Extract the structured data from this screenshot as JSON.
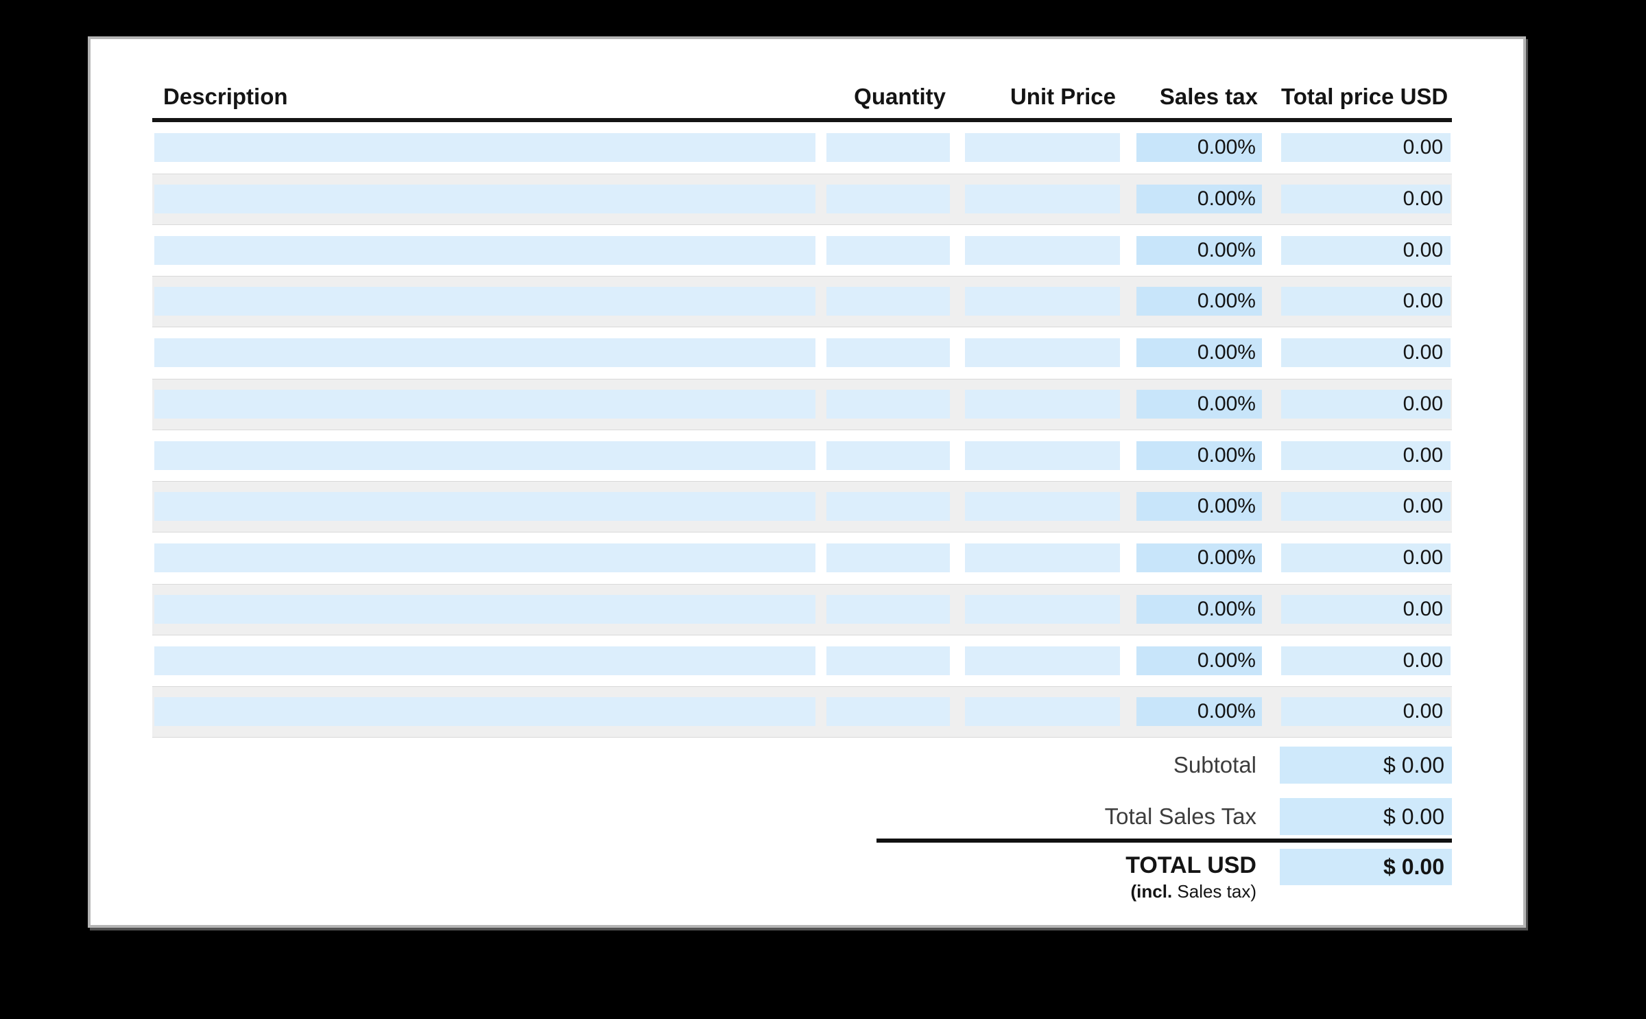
{
  "table": {
    "headers": [
      "Description",
      "Quantity",
      "Unit Price",
      "Sales tax",
      "Total price USD"
    ],
    "rows": [
      {
        "description": "",
        "quantity": "",
        "unit_price": "",
        "sales_tax": "0.00%",
        "total_price": "0.00"
      },
      {
        "description": "",
        "quantity": "",
        "unit_price": "",
        "sales_tax": "0.00%",
        "total_price": "0.00"
      },
      {
        "description": "",
        "quantity": "",
        "unit_price": "",
        "sales_tax": "0.00%",
        "total_price": "0.00"
      },
      {
        "description": "",
        "quantity": "",
        "unit_price": "",
        "sales_tax": "0.00%",
        "total_price": "0.00"
      },
      {
        "description": "",
        "quantity": "",
        "unit_price": "",
        "sales_tax": "0.00%",
        "total_price": "0.00"
      },
      {
        "description": "",
        "quantity": "",
        "unit_price": "",
        "sales_tax": "0.00%",
        "total_price": "0.00"
      },
      {
        "description": "",
        "quantity": "",
        "unit_price": "",
        "sales_tax": "0.00%",
        "total_price": "0.00"
      },
      {
        "description": "",
        "quantity": "",
        "unit_price": "",
        "sales_tax": "0.00%",
        "total_price": "0.00"
      },
      {
        "description": "",
        "quantity": "",
        "unit_price": "",
        "sales_tax": "0.00%",
        "total_price": "0.00"
      },
      {
        "description": "",
        "quantity": "",
        "unit_price": "",
        "sales_tax": "0.00%",
        "total_price": "0.00"
      },
      {
        "description": "",
        "quantity": "",
        "unit_price": "",
        "sales_tax": "0.00%",
        "total_price": "0.00"
      },
      {
        "description": "",
        "quantity": "",
        "unit_price": "",
        "sales_tax": "0.00%",
        "total_price": "0.00"
      }
    ]
  },
  "summary": {
    "subtotal_label": "Subtotal",
    "subtotal_value": "$ 0.00",
    "total_sales_tax_label": "Total Sales Tax",
    "total_sales_tax_value": "$ 0.00",
    "total_label": "TOTAL USD",
    "total_note_bold": "(incl.",
    "total_note_rest": " Sales tax)",
    "total_value": "$ 0.00"
  },
  "colors": {
    "canvas_background": "#000000",
    "page_background": "#ffffff",
    "field_blue": "#dceefc",
    "sales_tax_field_blue": "#c8e5fa",
    "total_field_blue": "#d9edfb",
    "summary_field_blue": "#cfe9fb",
    "row_stripe_gray": "#efefef",
    "text_black": "#141414",
    "label_gray": "#3d3d3d"
  }
}
